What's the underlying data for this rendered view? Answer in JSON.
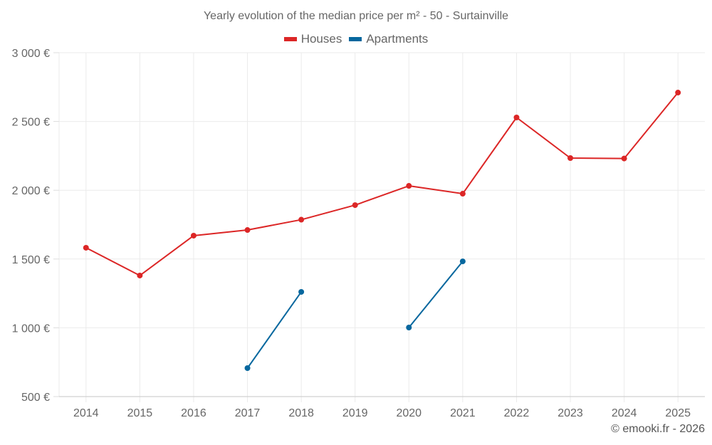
{
  "chart_data": {
    "type": "line",
    "title": "Yearly evolution of the median price per m² - 50 - Surtainville",
    "xlabel": "",
    "ylabel": "",
    "categories": [
      "2014",
      "2015",
      "2016",
      "2017",
      "2018",
      "2019",
      "2020",
      "2021",
      "2022",
      "2023",
      "2024",
      "2025"
    ],
    "ylim": [
      500,
      3000
    ],
    "yticks": [
      500,
      1000,
      1500,
      2000,
      2500,
      3000
    ],
    "ytick_labels": [
      "500 €",
      "1 000 €",
      "1 500 €",
      "2 000 €",
      "2 500 €",
      "3 000 €"
    ],
    "grid": true,
    "legend_position": "top-center",
    "series": [
      {
        "name": "Houses",
        "color": "#dc2626",
        "values": [
          1582,
          1380,
          1670,
          1711,
          1786,
          1892,
          2032,
          1975,
          2529,
          2234,
          2231,
          2710
        ]
      },
      {
        "name": "Apartments",
        "color": "#06679e",
        "values": [
          null,
          null,
          null,
          707,
          1261,
          null,
          1002,
          1483,
          null,
          null,
          null,
          null
        ]
      }
    ]
  },
  "credit": "© emooki.fr - 2026"
}
